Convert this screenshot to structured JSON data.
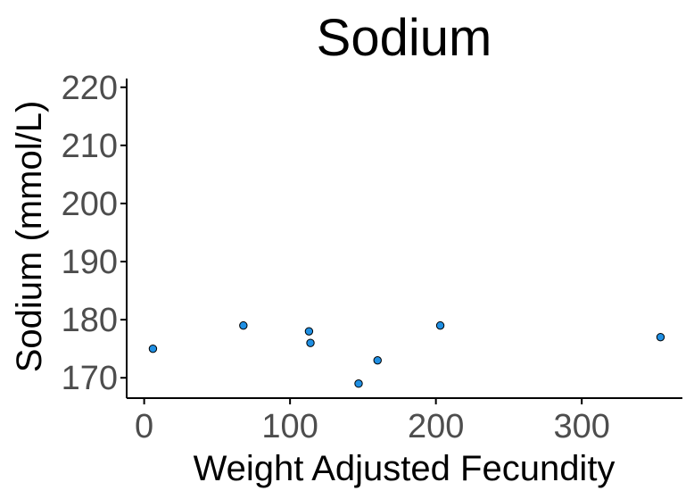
{
  "chart_data": {
    "type": "scatter",
    "title": "Sodium",
    "xlabel": "Weight Adjusted Fecundity",
    "ylabel": "Sodium (mmol/L)",
    "xlim": [
      -12,
      369
    ],
    "ylim": [
      166.5,
      221.5
    ],
    "xticks": [
      0,
      100,
      200,
      300
    ],
    "yticks": [
      170,
      180,
      190,
      200,
      210,
      220
    ],
    "grid": false,
    "point_color": "#1f8fe3",
    "points": [
      {
        "x": 6,
        "y": 175
      },
      {
        "x": 68,
        "y": 179
      },
      {
        "x": 113,
        "y": 178
      },
      {
        "x": 114,
        "y": 176
      },
      {
        "x": 147,
        "y": 169
      },
      {
        "x": 160,
        "y": 173
      },
      {
        "x": 203,
        "y": 179
      },
      {
        "x": 354,
        "y": 177
      }
    ]
  }
}
